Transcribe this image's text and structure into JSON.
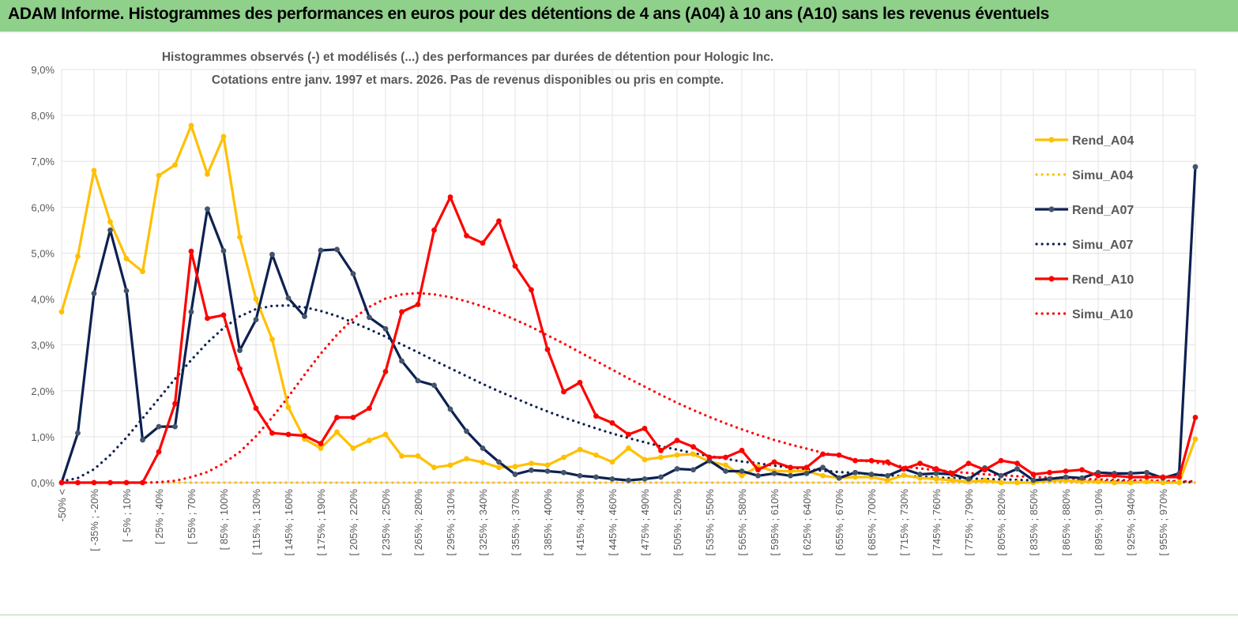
{
  "header": {
    "title": "ADAM Informe. Histogrammes des performances en euros pour des détentions de 4 ans (A04) à 10 ans (A10) sans les revenus éventuels"
  },
  "chart_data": {
    "type": "line",
    "title_line1": "Histogrammes observés (-)  et modélisés (...) des performances par durées de détention pour Hologic Inc.",
    "title_line2": "Cotations entre janv. 1997 et mars. 2026.  Pas de revenus disponibles ou pris en compte.",
    "ylim": [
      0,
      9
    ],
    "yticks": [
      "0,0%",
      "1,0%",
      "2,0%",
      "3,0%",
      "4,0%",
      "5,0%",
      "6,0%",
      "7,0%",
      "8,0%",
      "9,0%"
    ],
    "xtick_labels": [
      "-50% <",
      "[ -35% ; -20%",
      "[ -5% ; 10%",
      "[ 25% ; 40%",
      "[ 55% ; 70%",
      "[ 85% ; 100%",
      "[ 115% ; 130%",
      "[ 145% ; 160%",
      "[ 175% ; 190%",
      "[ 205% ; 220%",
      "[ 235% ; 250%",
      "[ 265% ; 280%",
      "[ 295% ; 310%",
      "[ 325% ; 340%",
      "[ 355% ; 370%",
      "[ 385% ; 400%",
      "[ 415% ; 430%",
      "[ 445% ; 460%",
      "[ 475% ; 490%",
      "[ 505% ; 520%",
      "[ 535% ; 550%",
      "[ 565% ; 580%",
      "[ 595% ; 610%",
      "[ 625% ; 640%",
      "[ 655% ; 670%",
      "[ 685% ; 700%",
      "[ 715% ; 730%",
      "[ 745% ; 760%",
      "[ 775% ; 790%",
      "[ 805% ; 820%",
      "[ 835% ; 850%",
      "[ 865% ; 880%",
      "[ 895% ; 910%",
      "[ 925% ; 940%",
      "[ 955% ; 970%"
    ],
    "series": [
      {
        "name": "Rend_A04",
        "style": "solid",
        "color": "#ffc000",
        "values": [
          3.72,
          4.93,
          6.8,
          5.68,
          4.88,
          4.6,
          6.69,
          6.92,
          7.78,
          6.72,
          7.54,
          5.35,
          4.0,
          3.12,
          1.64,
          0.95,
          0.75,
          1.1,
          0.75,
          0.92,
          1.05,
          0.58,
          0.58,
          0.33,
          0.38,
          0.52,
          0.44,
          0.33,
          0.35,
          0.42,
          0.38,
          0.55,
          0.72,
          0.6,
          0.45,
          0.75,
          0.5,
          0.55,
          0.6,
          0.62,
          0.46,
          0.38,
          0.15,
          0.35,
          0.25,
          0.25,
          0.25,
          0.15,
          0.1,
          0.12,
          0.12,
          0.05,
          0.16,
          0.1,
          0.08,
          0.05,
          0.02,
          0.05,
          0.0,
          0.0,
          0.0,
          0.05,
          0.05,
          0.02,
          0.02,
          0.0,
          0.0,
          0.02,
          0.0,
          0.0,
          0.95
        ]
      },
      {
        "name": "Simu_A04",
        "style": "dotted",
        "color": "#ffc000",
        "values": [
          0.0,
          0.0,
          0.0,
          0.0,
          0.0,
          0.0,
          0.0,
          0.0,
          0.0,
          0.0,
          0.0,
          0.0,
          0.0,
          0.0,
          0.0,
          0.0,
          0.0,
          0.0,
          0.0,
          0.0,
          0.0,
          0.0,
          0.0,
          0.0,
          0.0,
          0.0,
          0.0,
          0.0,
          0.0,
          0.0,
          0.0,
          0.0,
          0.0,
          0.0,
          0.0,
          0.0,
          0.0,
          0.0,
          0.0,
          0.0,
          0.0,
          0.0,
          0.0,
          0.0,
          0.0,
          0.0,
          0.0,
          0.0,
          0.0,
          0.0,
          0.0,
          0.0,
          0.0,
          0.0,
          0.0,
          0.0,
          0.0,
          0.0,
          0.0,
          0.0,
          0.0,
          0.0,
          0.0,
          0.0,
          0.0,
          0.0,
          0.0,
          0.0,
          0.0,
          0.0,
          0.0
        ]
      },
      {
        "name": "Rend_A07",
        "style": "solid",
        "color": "#0d2151",
        "values": [
          0.0,
          1.08,
          4.12,
          5.5,
          4.18,
          0.93,
          1.22,
          1.22,
          3.72,
          5.96,
          5.05,
          2.88,
          3.55,
          4.97,
          4.02,
          3.62,
          5.06,
          5.08,
          4.55,
          3.6,
          3.35,
          2.65,
          2.22,
          2.12,
          1.6,
          1.12,
          0.75,
          0.45,
          0.18,
          0.27,
          0.25,
          0.22,
          0.15,
          0.12,
          0.08,
          0.05,
          0.08,
          0.12,
          0.3,
          0.28,
          0.48,
          0.25,
          0.25,
          0.15,
          0.2,
          0.15,
          0.2,
          0.33,
          0.1,
          0.22,
          0.18,
          0.15,
          0.3,
          0.18,
          0.2,
          0.18,
          0.08,
          0.32,
          0.15,
          0.3,
          0.05,
          0.08,
          0.12,
          0.1,
          0.22,
          0.2,
          0.2,
          0.22,
          0.1,
          0.2,
          6.88
        ]
      },
      {
        "name": "Simu_A07",
        "style": "dotted",
        "color": "#0d2151",
        "values": [
          0.03,
          0.1,
          0.29,
          0.6,
          0.98,
          1.4,
          1.83,
          2.26,
          2.67,
          3.05,
          3.37,
          3.62,
          3.78,
          3.85,
          3.86,
          3.82,
          3.74,
          3.63,
          3.49,
          3.34,
          3.18,
          3.01,
          2.84,
          2.66,
          2.49,
          2.32,
          2.15,
          1.99,
          1.84,
          1.69,
          1.55,
          1.42,
          1.3,
          1.18,
          1.07,
          0.97,
          0.88,
          0.79,
          0.72,
          0.64,
          0.58,
          0.52,
          0.46,
          0.42,
          0.37,
          0.33,
          0.29,
          0.26,
          0.23,
          0.21,
          0.18,
          0.16,
          0.14,
          0.13,
          0.11,
          0.1,
          0.09,
          0.08,
          0.07,
          0.06,
          0.05,
          0.05,
          0.04,
          0.04,
          0.03,
          0.03,
          0.02,
          0.02,
          0.02,
          0.02,
          0.01
        ]
      },
      {
        "name": "Rend_A10",
        "style": "solid",
        "color": "#ff0000",
        "values": [
          0.0,
          0.0,
          0.0,
          0.0,
          0.0,
          0.0,
          0.67,
          1.72,
          5.04,
          3.58,
          3.65,
          2.48,
          1.62,
          1.08,
          1.05,
          1.02,
          0.85,
          1.42,
          1.42,
          1.62,
          2.42,
          3.72,
          3.88,
          5.5,
          6.22,
          5.38,
          5.22,
          5.7,
          4.72,
          4.2,
          2.9,
          1.98,
          2.18,
          1.45,
          1.3,
          1.05,
          1.18,
          0.7,
          0.92,
          0.78,
          0.55,
          0.55,
          0.7,
          0.28,
          0.45,
          0.33,
          0.33,
          0.62,
          0.6,
          0.48,
          0.48,
          0.45,
          0.3,
          0.42,
          0.3,
          0.2,
          0.42,
          0.28,
          0.48,
          0.42,
          0.18,
          0.22,
          0.25,
          0.28,
          0.15,
          0.15,
          0.12,
          0.12,
          0.12,
          0.12,
          1.42
        ]
      },
      {
        "name": "Simu_A10",
        "style": "dotted",
        "color": "#ff0000",
        "values": [
          0.0,
          0.0,
          0.0,
          0.0,
          0.0,
          0.0,
          0.01,
          0.04,
          0.12,
          0.23,
          0.42,
          0.67,
          1.01,
          1.42,
          1.87,
          2.35,
          2.81,
          3.22,
          3.57,
          3.83,
          4.01,
          4.1,
          4.13,
          4.1,
          4.04,
          3.95,
          3.84,
          3.7,
          3.55,
          3.39,
          3.21,
          3.03,
          2.84,
          2.65,
          2.46,
          2.27,
          2.09,
          1.91,
          1.74,
          1.58,
          1.43,
          1.29,
          1.16,
          1.04,
          0.93,
          0.83,
          0.74,
          0.65,
          0.58,
          0.51,
          0.45,
          0.4,
          0.35,
          0.31,
          0.27,
          0.24,
          0.21,
          0.18,
          0.16,
          0.14,
          0.12,
          0.11,
          0.09,
          0.08,
          0.07,
          0.06,
          0.05,
          0.05,
          0.04,
          0.03,
          0.03
        ]
      }
    ],
    "legend_position": "right",
    "grid": true
  }
}
